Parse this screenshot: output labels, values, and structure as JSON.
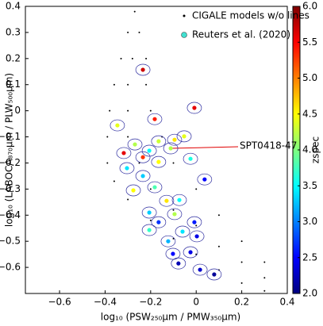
{
  "chart_data": {
    "type": "scatter",
    "xlabel": "log₁₀ (PSW₂₅₀μm / PMW₃₅₀μm)",
    "ylabel": "log₁₀ (LABOCA₈₇₀μm / PLW₅₀₀μm)",
    "colorbar_label": "zspec",
    "xlim": [
      -0.75,
      0.4
    ],
    "ylim": [
      -0.7,
      0.4
    ],
    "clim": [
      2.0,
      6.0
    ],
    "xticks": [
      {
        "value": -0.6,
        "label": "−0.6"
      },
      {
        "value": -0.4,
        "label": "−0.4"
      },
      {
        "value": -0.2,
        "label": "−0.2"
      },
      0,
      0.2,
      0.4
    ],
    "yticks": [
      0.4,
      0.3,
      0.2,
      0.1,
      0,
      {
        "value": -0.1,
        "label": "−0.1"
      },
      {
        "value": -0.2,
        "label": "−0.2"
      },
      {
        "value": -0.3,
        "label": "−0.3"
      },
      {
        "value": -0.4,
        "label": "−0.4"
      },
      {
        "value": -0.5,
        "label": "−0.5"
      },
      {
        "value": -0.6,
        "label": "−0.6"
      }
    ],
    "cticks": [
      {
        "value": 2.0,
        "label": "2.0"
      },
      2.5,
      {
        "value": 3.0,
        "label": "3.0"
      },
      3.5,
      {
        "value": 4.0,
        "label": "4.0"
      },
      4.5,
      {
        "value": 5.0,
        "label": "5.0"
      },
      5.5,
      {
        "value": 6.0,
        "label": "6.0"
      }
    ],
    "legend": "upper right",
    "series": [
      {
        "name": "CIGALE models w/o lines",
        "color": "#000000",
        "x": [
          -0.27,
          -0.3,
          -0.33,
          -0.36,
          -0.38,
          -0.39,
          -0.39,
          -0.36,
          -0.3,
          -0.2,
          -0.1,
          0,
          0.1,
          0.2,
          0.3,
          -0.25,
          -0.28,
          -0.3,
          -0.3,
          -0.3,
          -0.25,
          -0.2,
          -0.1,
          0,
          0.1,
          0.2,
          0.3,
          -0.22,
          -0.22,
          -0.2,
          -0.15,
          -0.1,
          0,
          0.1,
          0.2,
          0.3
        ],
        "y": [
          0.38,
          0.3,
          0.2,
          0.1,
          0,
          -0.1,
          -0.2,
          -0.27,
          -0.34,
          -0.42,
          -0.49,
          -0.55,
          -0.61,
          -0.66,
          -0.69,
          0.3,
          0.2,
          0.1,
          0,
          -0.1,
          -0.2,
          -0.3,
          -0.38,
          -0.44,
          -0.52,
          -0.58,
          -0.64,
          0.2,
          0.1,
          0,
          -0.1,
          -0.2,
          -0.3,
          -0.4,
          -0.5,
          -0.58
        ]
      },
      {
        "name": "Reuters et al. (2020)",
        "color": "#40e0d0",
        "x": [
          -0.234,
          -0.008,
          -0.182,
          -0.346,
          -0.112,
          -0.095,
          -0.053,
          -0.318,
          -0.234,
          -0.269,
          -0.165,
          -0.206,
          -0.025,
          0.037,
          -0.304,
          -0.276,
          -0.234,
          -0.182,
          -0.13,
          -0.206,
          -0.095,
          -0.074,
          -0.165,
          -0.008,
          -0.06,
          -0.206,
          -0.123,
          -0.025,
          -0.102,
          -0.078,
          0.017,
          0.079,
          0.003,
          -0.165
        ],
        "y": [
          0.157,
          0.011,
          -0.032,
          -0.056,
          -0.144,
          -0.111,
          -0.098,
          -0.162,
          -0.178,
          -0.129,
          -0.196,
          -0.153,
          -0.184,
          -0.263,
          -0.22,
          -0.305,
          -0.25,
          -0.293,
          -0.345,
          -0.39,
          -0.396,
          -0.342,
          -0.427,
          -0.427,
          -0.463,
          -0.457,
          -0.5,
          -0.542,
          -0.548,
          -0.585,
          -0.609,
          -0.627,
          -0.481,
          -0.117
        ],
        "z": [
          5.7,
          5.6,
          5.4,
          4.4,
          4.2,
          4.6,
          4.4,
          5.6,
          5.3,
          4.2,
          4.5,
          3.5,
          3.6,
          2.5,
          3.4,
          4.5,
          3.3,
          3.8,
          4.6,
          3.3,
          4.2,
          3.5,
          2.7,
          2.6,
          3.4,
          3.7,
          3.2,
          2.4,
          2.5,
          2.2,
          2.3,
          2.1,
          2.4,
          4.3
        ]
      }
    ],
    "annotation": {
      "text": "SPT0418-47",
      "x": -0.112,
      "y": -0.144,
      "color": "#e00000"
    }
  }
}
